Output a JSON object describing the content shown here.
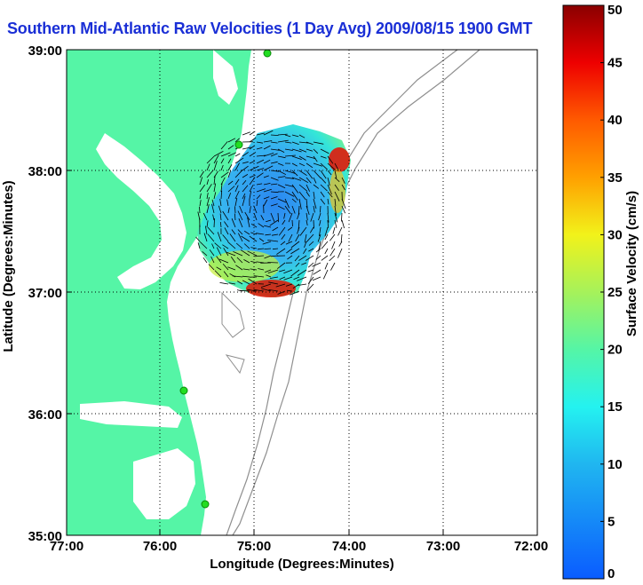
{
  "title": "Southern Mid-Atlantic Raw Velocities (1 Day Avg) 2009/08/15 1900 GMT",
  "x_axis": {
    "label": "Longitude (Degrees:Minutes)",
    "ticks": [
      "77:00",
      "76:00",
      "75:00",
      "74:00",
      "73:00",
      "72:00"
    ]
  },
  "y_axis": {
    "label": "Latitude (Degrees:Minutes)",
    "ticks": [
      "39:00",
      "38:00",
      "37:00",
      "36:00",
      "35:00"
    ]
  },
  "colorbar": {
    "label": "Surface Velocity (cm/s)",
    "ticks": [
      "0",
      "5",
      "10",
      "15",
      "20",
      "25",
      "30",
      "35",
      "40",
      "45",
      "50"
    ],
    "min": 0,
    "max": 50
  },
  "colors": {
    "land": "#55f5a6",
    "water": "#ffffff",
    "title": "#1a2fd6",
    "station": "#22dd22"
  }
}
